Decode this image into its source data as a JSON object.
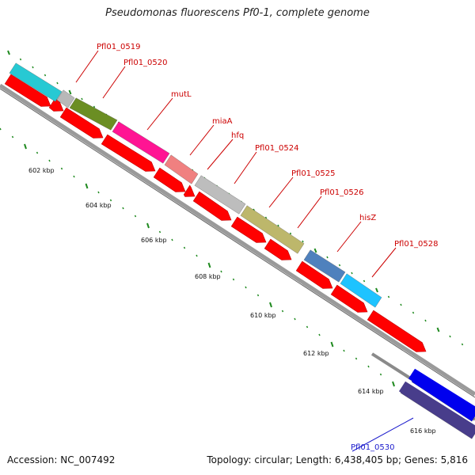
{
  "title": "Pseudomonas fluorescens Pf0-1, complete genome",
  "footer": {
    "accession": "Accession: NC_007492",
    "topology": "Topology: circular; Length: 6,438,405 bp; Genes: 5,816"
  },
  "colors": {
    "backbone": "#8a8a8a",
    "cds_arrows": "#ff0000",
    "ticks": "#1f8a1f",
    "label_red": "#cc0000",
    "label_blue": "#1a1acc",
    "label_line": "#cc0000"
  },
  "scale_labels": [
    "602 kbp",
    "604 kbp",
    "606 kbp",
    "608 kbp",
    "610 kbp",
    "612 kbp",
    "614 kbp",
    "616 kbp"
  ],
  "features": [
    {
      "label": "Pfl01_0519",
      "color": "#27c9d3",
      "label_color": "red"
    },
    {
      "label": "Pfl01_0520",
      "color": "#b8b8b8",
      "label_color": "red"
    },
    {
      "label": "mutL",
      "color": "#6b8e23",
      "label_color": "red"
    },
    {
      "label": "miaA",
      "color": "#ff1493",
      "label_color": "red"
    },
    {
      "label": "hfq",
      "color": "#f08080",
      "label_color": "red"
    },
    {
      "label": "Pfl01_0524",
      "color": "#bdbdbd",
      "label_color": "red"
    },
    {
      "label": "Pfl01_0525",
      "color": "#bdb76b",
      "label_color": "red"
    },
    {
      "label": "Pfl01_0526",
      "color": "#4f81bd",
      "label_color": "red"
    },
    {
      "label": "hisZ",
      "color": "#1ec3ff",
      "label_color": "red"
    },
    {
      "label": "Pfl01_0528",
      "color": "#0000ee",
      "label_color": "red"
    },
    {
      "label": "Pfl01_0530",
      "color": "#483d8b",
      "label_color": "blue"
    }
  ]
}
